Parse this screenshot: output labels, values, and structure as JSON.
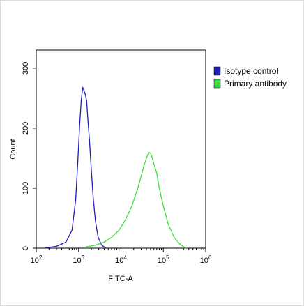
{
  "chart_data": {
    "type": "line",
    "xlabel": "FITC-A",
    "ylabel": "Count",
    "x_scale": "log",
    "xlim": [
      100,
      1000000
    ],
    "ylim": [
      0,
      330
    ],
    "x_ticks": [
      {
        "value": 100,
        "base": "10",
        "exp": "2"
      },
      {
        "value": 1000,
        "base": "10",
        "exp": "3"
      },
      {
        "value": 10000,
        "base": "10",
        "exp": "4"
      },
      {
        "value": 100000,
        "base": "10",
        "exp": "5"
      },
      {
        "value": 1000000,
        "base": "10",
        "exp": "6"
      }
    ],
    "y_ticks": [
      0,
      100,
      200,
      300
    ],
    "grid": false,
    "legend_position": "top-right",
    "series": [
      {
        "name": "Isotype control",
        "color": "#1f1fb8",
        "x": [
          150,
          300,
          500,
          700,
          850,
          950,
          1050,
          1150,
          1250,
          1350,
          1450,
          1550,
          1650,
          1800,
          2000,
          2200,
          2500,
          2900,
          3500,
          4500
        ],
        "y": [
          0,
          3,
          10,
          30,
          80,
          140,
          200,
          245,
          268,
          262,
          255,
          245,
          215,
          180,
          130,
          85,
          45,
          18,
          5,
          0
        ]
      },
      {
        "name": "Primary antibody",
        "color": "#3fdc3f",
        "x": [
          1500,
          2500,
          4000,
          6000,
          9000,
          13000,
          18000,
          25000,
          30000,
          35000,
          40000,
          45000,
          50000,
          55000,
          60000,
          70000,
          80000,
          100000,
          130000,
          180000,
          250000,
          350000
        ],
        "y": [
          2,
          5,
          10,
          18,
          30,
          48,
          70,
          100,
          120,
          138,
          150,
          160,
          158,
          150,
          140,
          125,
          100,
          70,
          40,
          18,
          6,
          0
        ]
      }
    ]
  }
}
